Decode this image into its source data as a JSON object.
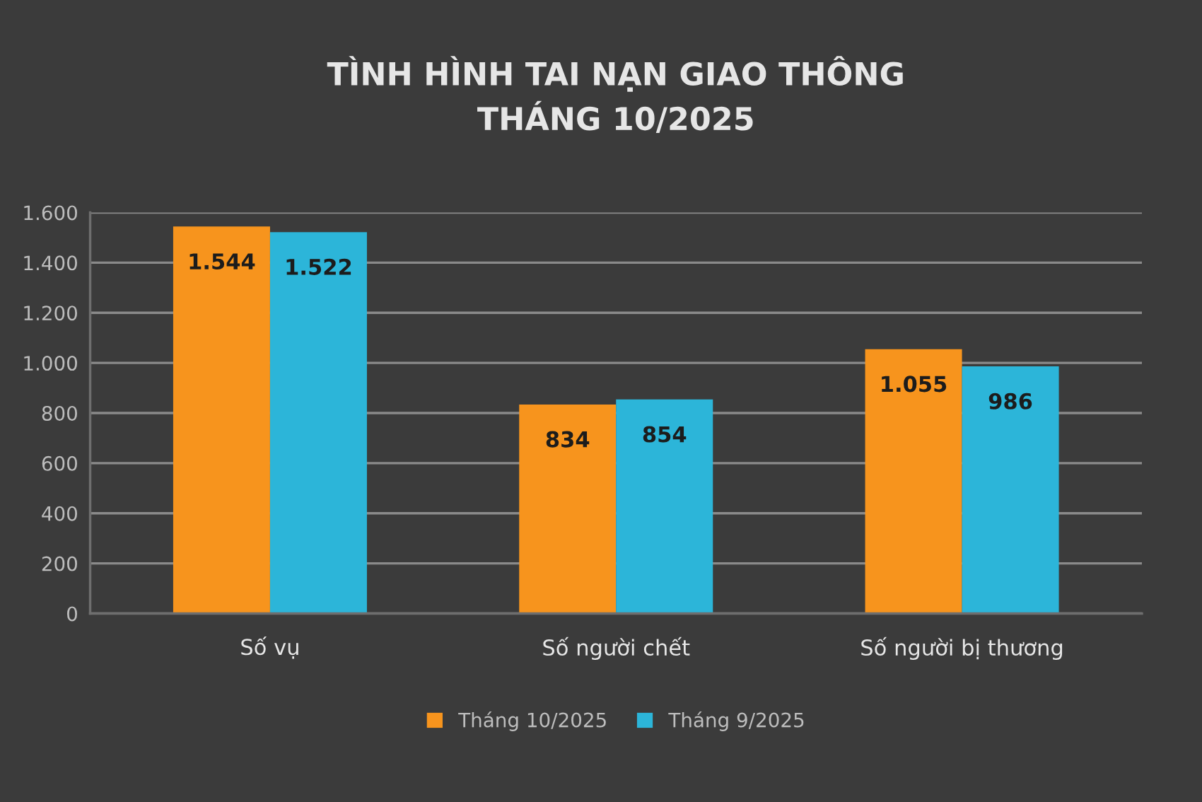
{
  "chart_data": {
    "type": "bar",
    "title": "TÌNH HÌNH TAI NẠN GIAO THÔNG\nTHÁNG 10/2025",
    "categories": [
      "Số vụ",
      "Số người chết",
      "Số người bị thương"
    ],
    "series": [
      {
        "name": "Tháng 10/2025",
        "color": "#f7941d",
        "values": [
          1544,
          834,
          1055
        ],
        "value_labels": [
          "1.544",
          "834",
          "1.055"
        ]
      },
      {
        "name": "Tháng 9/2025",
        "color": "#2cb5d9",
        "values": [
          1522,
          854,
          986
        ],
        "value_labels": [
          "1.522",
          "854",
          "986"
        ]
      }
    ],
    "ylim": [
      0,
      1600
    ],
    "yticks": [
      0,
      200,
      400,
      600,
      800,
      {
        "value": 1000,
        "label": "1.000"
      },
      {
        "value": 1200,
        "label": "1.200"
      },
      {
        "value": 1400,
        "label": "1.400"
      },
      {
        "value": 1600,
        "label": "1.600"
      }
    ],
    "grid": "y",
    "legend": "bottom"
  }
}
